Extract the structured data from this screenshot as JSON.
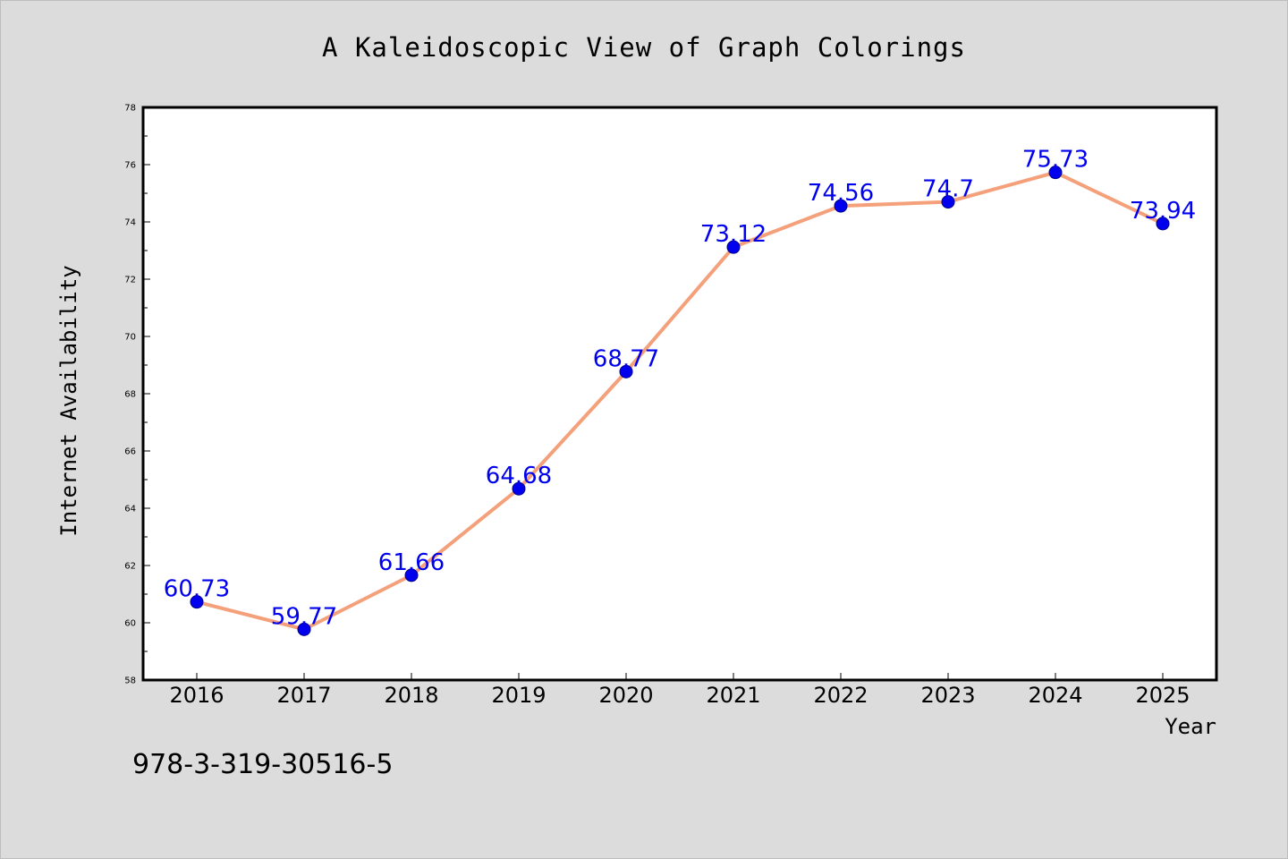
{
  "chart_data": {
    "type": "line",
    "title": "A Kaleidoscopic View of Graph Colorings",
    "xlabel": "Year",
    "ylabel": "Internet Availability",
    "categories": [
      "2016",
      "2017",
      "2018",
      "2019",
      "2020",
      "2021",
      "2022",
      "2023",
      "2024",
      "2025"
    ],
    "series": [
      {
        "values": [
          60.73,
          59.77,
          61.66,
          64.68,
          68.77,
          73.12,
          74.56,
          74.7,
          75.73,
          73.94
        ],
        "labels": [
          "60.73",
          "59.77",
          "61.66",
          "64.68",
          "68.77",
          "73.12",
          "74.56",
          "74.7",
          "75.73",
          "73.94"
        ],
        "line_color": "#f4a07a",
        "marker_color": "#0000ee",
        "label_color": "#0000ee"
      }
    ],
    "ylim": [
      58,
      78
    ],
    "yticks": [
      "58",
      "60",
      "62",
      "64",
      "66",
      "68",
      "70",
      "72",
      "74",
      "76",
      "78"
    ],
    "grid": false,
    "legend": "none",
    "background_color": "#dcdcdc",
    "plot_background_color": "#ffffff"
  },
  "footnote": "978-3-319-30516-5"
}
